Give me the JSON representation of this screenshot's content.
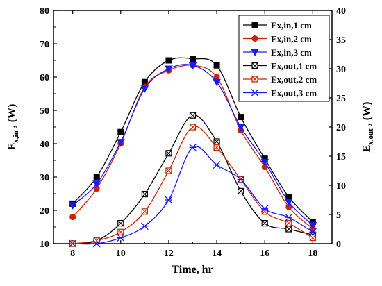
{
  "chart_data": {
    "type": "line",
    "xlabel": "Time, hr",
    "ylabel_left": "E_x,in , (W)",
    "ylabel_right": "E_x,out , (W)",
    "xlim": [
      7.2,
      18.8
    ],
    "xticks": [
      8,
      10,
      12,
      14,
      16,
      18
    ],
    "ylim_left": [
      10,
      80
    ],
    "yticks_left": [
      10,
      20,
      30,
      40,
      50,
      60,
      70,
      80
    ],
    "ylim_right": [
      0,
      40
    ],
    "yticks_right": [
      0,
      5,
      10,
      15,
      20,
      25,
      30,
      35,
      40
    ],
    "grid": false,
    "legend_position": "top-right",
    "x": [
      8,
      9,
      10,
      11,
      12,
      13,
      14,
      15,
      16,
      17,
      18
    ],
    "series": [
      {
        "name": "Ex,in,1 cm",
        "axis": "left",
        "color": "#000000",
        "marker": "square-filled",
        "values": [
          22.0,
          30.0,
          43.5,
          58.5,
          65.0,
          65.5,
          63.5,
          48.0,
          35.5,
          24.0,
          16.5
        ]
      },
      {
        "name": "Ex,in,2 cm",
        "axis": "left",
        "color": "#cc2200",
        "marker": "circle-filled",
        "values": [
          18.0,
          26.5,
          40.0,
          57.0,
          62.0,
          63.5,
          60.0,
          44.0,
          33.0,
          21.0,
          14.5
        ]
      },
      {
        "name": "Ex,in,3 cm",
        "axis": "left",
        "color": "#1a1aff",
        "marker": "triangle-down",
        "values": [
          21.5,
          28.0,
          40.5,
          56.5,
          62.5,
          63.5,
          58.5,
          45.0,
          34.5,
          22.5,
          15.5
        ]
      },
      {
        "name": "Ex,out,1 cm",
        "axis": "right",
        "color": "#000000",
        "marker": "square-crossed",
        "values": [
          0.0,
          0.5,
          3.5,
          8.5,
          15.5,
          22.0,
          17.5,
          9.0,
          3.5,
          2.5,
          1.5
        ]
      },
      {
        "name": "Ex,out,2 cm",
        "axis": "right",
        "color": "#cc2200",
        "marker": "square-crossed",
        "values": [
          0.0,
          0.5,
          2.0,
          5.5,
          12.5,
          20.0,
          16.5,
          11.0,
          5.5,
          3.5,
          1.0
        ]
      },
      {
        "name": "Ex,out,3 cm",
        "axis": "right",
        "color": "#1a1aff",
        "marker": "star",
        "values": [
          0.0,
          0.0,
          1.0,
          3.0,
          7.5,
          16.5,
          13.5,
          11.0,
          6.0,
          4.5,
          2.0
        ]
      }
    ]
  }
}
